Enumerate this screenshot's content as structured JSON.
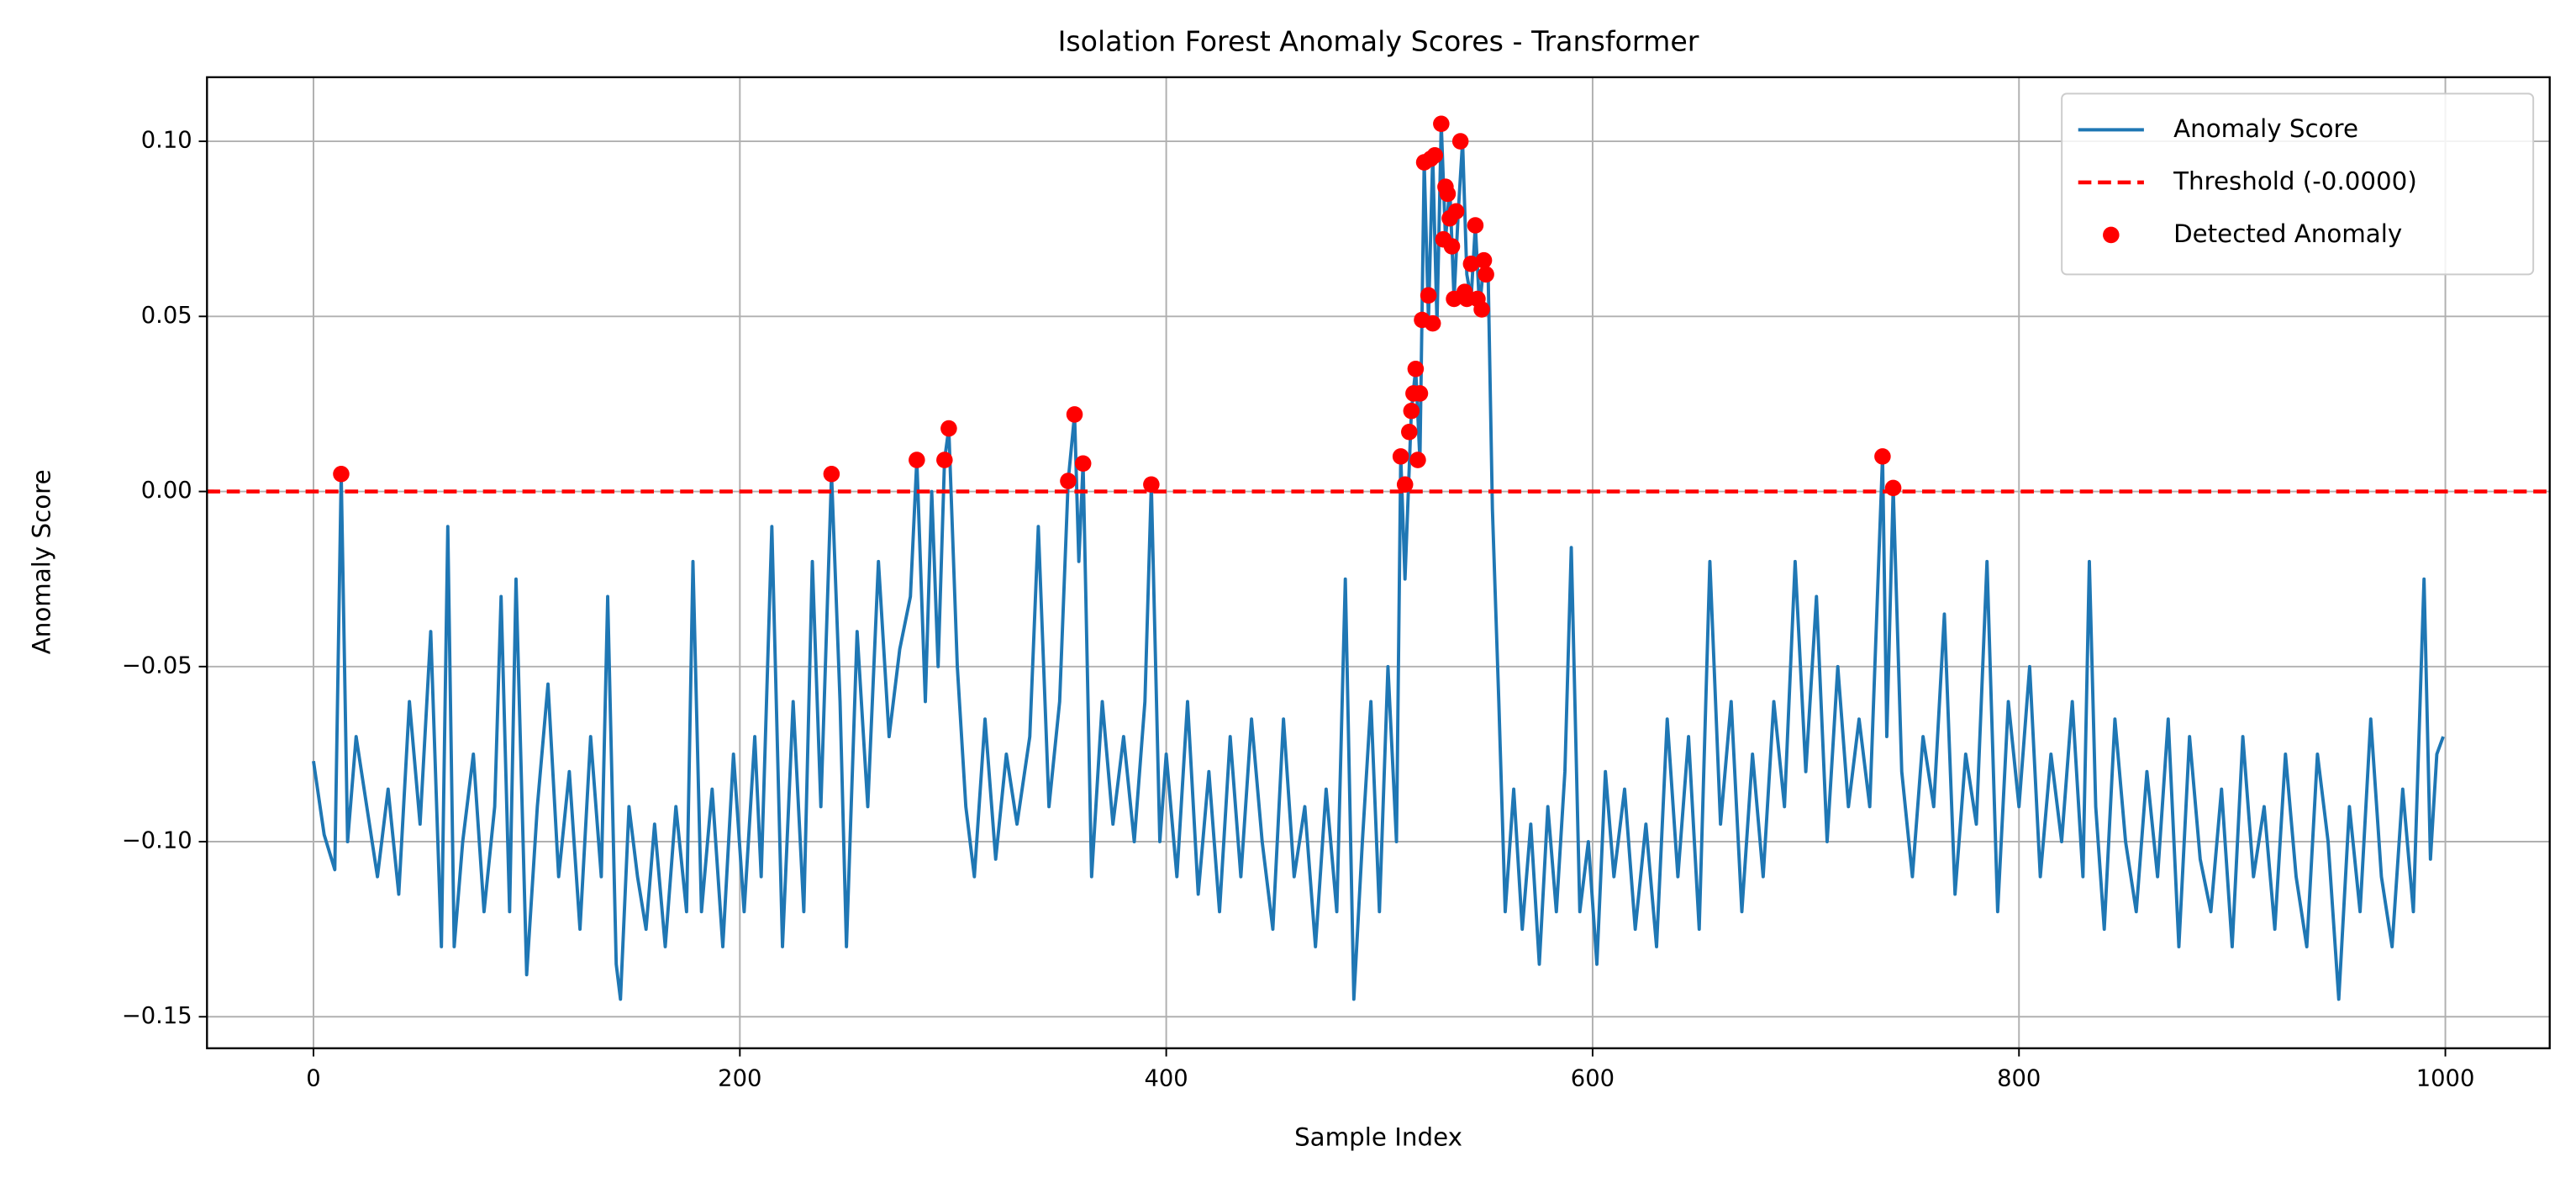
{
  "chart_data": {
    "type": "line",
    "title": "Isolation Forest Anomaly Scores - Transformer",
    "xlabel": "Sample Index",
    "ylabel": "Anomaly Score",
    "xlim": [
      -49.95,
      1048.95
    ],
    "ylim": [
      -0.159,
      0.1183
    ],
    "xticks": [
      0,
      200,
      400,
      600,
      800,
      1000
    ],
    "yticks": [
      {
        "value": -0.15,
        "label": "−0.15"
      },
      {
        "value": -0.1,
        "label": "−0.10"
      },
      {
        "value": -0.05,
        "label": "−0.05"
      },
      {
        "value": 0,
        "label": "0.00"
      },
      {
        "value": 0.05,
        "label": "0.05"
      },
      {
        "value": 0.1,
        "label": "0.10"
      }
    ],
    "grid": true,
    "legend": "upper right",
    "series": [
      {
        "name": "Anomaly Score",
        "kind": "line",
        "color": "#1f77b4",
        "x": [
          0,
          5,
          10,
          13,
          16,
          20,
          25,
          30,
          35,
          40,
          45,
          50,
          55,
          60,
          63,
          66,
          70,
          75,
          80,
          85,
          88,
          92,
          95,
          100,
          105,
          110,
          115,
          120,
          125,
          130,
          135,
          138,
          142,
          144,
          148,
          152,
          156,
          160,
          165,
          170,
          175,
          178,
          182,
          187,
          192,
          197,
          202,
          207,
          210,
          215,
          220,
          225,
          230,
          234,
          238,
          243,
          247,
          250,
          255,
          260,
          265,
          270,
          275,
          280,
          283,
          287,
          290,
          293,
          296,
          298,
          302,
          306,
          310,
          315,
          320,
          325,
          330,
          336,
          340,
          345,
          350,
          354,
          357,
          359,
          361,
          365,
          370,
          375,
          380,
          385,
          390,
          393,
          397,
          400,
          405,
          410,
          415,
          420,
          425,
          430,
          435,
          440,
          445,
          450,
          455,
          460,
          465,
          470,
          475,
          480,
          484,
          488,
          492,
          496,
          500,
          504,
          508,
          510,
          512,
          515,
          517,
          519,
          521,
          523,
          525,
          527,
          529,
          531,
          533,
          535,
          537,
          539,
          541,
          543,
          545,
          547,
          549,
          551,
          553,
          556,
          559,
          563,
          567,
          571,
          575,
          579,
          583,
          587,
          590,
          594,
          598,
          602,
          606,
          610,
          615,
          620,
          625,
          630,
          635,
          640,
          645,
          650,
          655,
          660,
          665,
          670,
          675,
          680,
          685,
          690,
          695,
          700,
          705,
          710,
          715,
          720,
          725,
          730,
          733,
          736,
          738,
          741,
          745,
          750,
          755,
          760,
          765,
          770,
          775,
          780,
          785,
          790,
          795,
          800,
          805,
          810,
          815,
          820,
          825,
          830,
          833,
          836,
          840,
          845,
          850,
          855,
          860,
          865,
          870,
          875,
          880,
          885,
          890,
          895,
          900,
          905,
          910,
          915,
          920,
          925,
          930,
          935,
          940,
          945,
          950,
          955,
          960,
          965,
          970,
          975,
          980,
          985,
          990,
          993,
          996,
          999
        ],
        "values": [
          -0.077,
          -0.098,
          -0.108,
          0.005,
          -0.1,
          -0.07,
          -0.09,
          -0.11,
          -0.085,
          -0.115,
          -0.06,
          -0.095,
          -0.04,
          -0.13,
          -0.01,
          -0.13,
          -0.1,
          -0.075,
          -0.12,
          -0.09,
          -0.03,
          -0.12,
          -0.025,
          -0.138,
          -0.09,
          -0.055,
          -0.11,
          -0.08,
          -0.125,
          -0.07,
          -0.11,
          -0.03,
          -0.135,
          -0.145,
          -0.09,
          -0.11,
          -0.125,
          -0.095,
          -0.13,
          -0.09,
          -0.12,
          -0.02,
          -0.12,
          -0.085,
          -0.13,
          -0.075,
          -0.12,
          -0.07,
          -0.11,
          -0.01,
          -0.13,
          -0.06,
          -0.12,
          -0.02,
          -0.09,
          0.005,
          -0.06,
          -0.13,
          -0.04,
          -0.09,
          -0.02,
          -0.07,
          -0.045,
          -0.03,
          0.009,
          -0.06,
          0.0,
          -0.05,
          0.009,
          0.018,
          -0.05,
          -0.09,
          -0.11,
          -0.065,
          -0.105,
          -0.075,
          -0.095,
          -0.07,
          -0.01,
          -0.09,
          -0.06,
          0.003,
          0.022,
          -0.02,
          0.008,
          -0.11,
          -0.06,
          -0.095,
          -0.07,
          -0.1,
          -0.06,
          0.002,
          -0.1,
          -0.075,
          -0.11,
          -0.06,
          -0.115,
          -0.08,
          -0.12,
          -0.07,
          -0.11,
          -0.065,
          -0.1,
          -0.125,
          -0.065,
          -0.11,
          -0.09,
          -0.13,
          -0.085,
          -0.12,
          -0.025,
          -0.145,
          -0.1,
          -0.06,
          -0.12,
          -0.05,
          -0.1,
          0.01,
          -0.025,
          0.023,
          0.035,
          0.009,
          0.094,
          0.049,
          0.096,
          0.048,
          0.105,
          0.072,
          0.087,
          0.055,
          0.08,
          0.1,
          0.062,
          0.055,
          0.076,
          0.052,
          0.066,
          0.062,
          -0.005,
          -0.06,
          -0.12,
          -0.085,
          -0.125,
          -0.095,
          -0.135,
          -0.09,
          -0.12,
          -0.08,
          -0.016,
          -0.12,
          -0.1,
          -0.135,
          -0.08,
          -0.11,
          -0.085,
          -0.125,
          -0.095,
          -0.13,
          -0.065,
          -0.11,
          -0.07,
          -0.125,
          -0.02,
          -0.095,
          -0.06,
          -0.12,
          -0.075,
          -0.11,
          -0.06,
          -0.09,
          -0.02,
          -0.08,
          -0.03,
          -0.1,
          -0.05,
          -0.09,
          -0.065,
          -0.09,
          -0.04,
          0.01,
          -0.07,
          0.001,
          -0.08,
          -0.11,
          -0.07,
          -0.09,
          -0.035,
          -0.115,
          -0.075,
          -0.095,
          -0.02,
          -0.12,
          -0.06,
          -0.09,
          -0.05,
          -0.11,
          -0.075,
          -0.1,
          -0.06,
          -0.11,
          -0.02,
          -0.09,
          -0.125,
          -0.065,
          -0.1,
          -0.12,
          -0.08,
          -0.11,
          -0.065,
          -0.13,
          -0.07,
          -0.105,
          -0.12,
          -0.085,
          -0.13,
          -0.07,
          -0.11,
          -0.09,
          -0.125,
          -0.075,
          -0.11,
          -0.13,
          -0.075,
          -0.1,
          -0.145,
          -0.09,
          -0.12,
          -0.065,
          -0.11,
          -0.13,
          -0.085,
          -0.12,
          -0.025,
          -0.105,
          -0.075,
          -0.07
        ]
      },
      {
        "name": "Threshold (-0.0000)",
        "kind": "hline",
        "color": "#ff0000",
        "value": 0
      },
      {
        "name": "Detected Anomaly",
        "kind": "scatter",
        "color": "#ff0000",
        "x": [
          13,
          243,
          283,
          296,
          298,
          354,
          357,
          361,
          393,
          510,
          512,
          514,
          515,
          516,
          517,
          518,
          519,
          520,
          521,
          523,
          524,
          525,
          526,
          529,
          530,
          531,
          532,
          533,
          534,
          535,
          536,
          538,
          540,
          541,
          543,
          545,
          546,
          548,
          549,
          550,
          736,
          741
        ],
        "values": [
          0.005,
          0.005,
          0.009,
          0.009,
          0.018,
          0.003,
          0.022,
          0.008,
          0.002,
          0.01,
          0.002,
          0.017,
          0.023,
          0.028,
          0.035,
          0.009,
          0.028,
          0.049,
          0.094,
          0.056,
          0.095,
          0.048,
          0.096,
          0.105,
          0.072,
          0.087,
          0.085,
          0.078,
          0.07,
          0.055,
          0.08,
          0.1,
          0.057,
          0.055,
          0.065,
          0.076,
          0.055,
          0.052,
          0.066,
          0.062,
          0.01,
          0.001
        ]
      }
    ]
  }
}
